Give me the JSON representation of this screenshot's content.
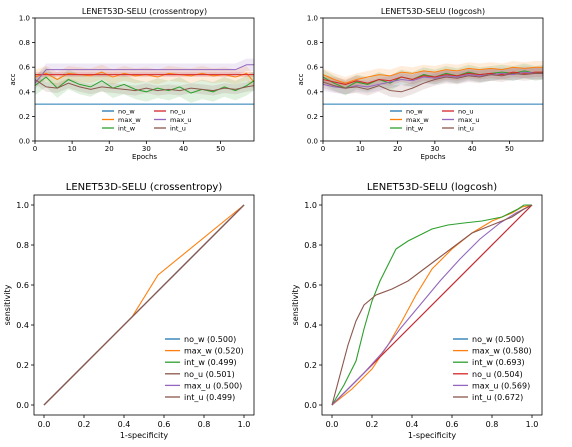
{
  "chart_data": [
    {
      "type": "line",
      "title": "LENET53D-SELU (crossentropy)",
      "xlabel": "Epochs",
      "ylabel": "acc",
      "xlim": [
        0,
        59
      ],
      "ylim": [
        0.0,
        1.0
      ],
      "xticks": [
        "0",
        "10",
        "20",
        "30",
        "40",
        "50"
      ],
      "yticks": [
        "0.0",
        "0.2",
        "0.4",
        "0.6",
        "0.8",
        "1.0"
      ],
      "grid": false,
      "legend": "bottom-center",
      "series": [
        {
          "name": "no_w",
          "color": "#1f77b4",
          "band": 0,
          "x": [
            0,
            59
          ],
          "y": [
            0.3,
            0.3
          ]
        },
        {
          "name": "max_w",
          "color": "#ff7f0e",
          "band": 0.06,
          "x": [
            0,
            3,
            6,
            9,
            12,
            15,
            18,
            21,
            24,
            27,
            30,
            33,
            36,
            39,
            42,
            45,
            48,
            51,
            54,
            57,
            59
          ],
          "y": [
            0.52,
            0.55,
            0.5,
            0.55,
            0.54,
            0.53,
            0.56,
            0.52,
            0.55,
            0.53,
            0.54,
            0.52,
            0.55,
            0.54,
            0.53,
            0.55,
            0.53,
            0.54,
            0.52,
            0.55,
            0.48
          ]
        },
        {
          "name": "int_w",
          "color": "#2ca02c",
          "band": 0.08,
          "x": [
            0,
            3,
            6,
            9,
            12,
            15,
            18,
            21,
            24,
            27,
            30,
            33,
            36,
            39,
            42,
            45,
            48,
            51,
            54,
            57,
            59
          ],
          "y": [
            0.45,
            0.52,
            0.43,
            0.5,
            0.46,
            0.44,
            0.49,
            0.43,
            0.46,
            0.42,
            0.4,
            0.43,
            0.41,
            0.44,
            0.39,
            0.42,
            0.4,
            0.44,
            0.41,
            0.45,
            0.49
          ]
        },
        {
          "name": "no_u",
          "color": "#d62728",
          "band": 0.02,
          "x": [
            0,
            59
          ],
          "y": [
            0.54,
            0.54
          ]
        },
        {
          "name": "max_u",
          "color": "#9467bd",
          "band": 0.05,
          "x": [
            0,
            3,
            6,
            9,
            12,
            15,
            18,
            21,
            24,
            27,
            30,
            33,
            36,
            39,
            42,
            45,
            48,
            51,
            54,
            57,
            59
          ],
          "y": [
            0.47,
            0.58,
            0.58,
            0.58,
            0.58,
            0.58,
            0.58,
            0.58,
            0.58,
            0.58,
            0.58,
            0.58,
            0.58,
            0.58,
            0.58,
            0.58,
            0.58,
            0.58,
            0.58,
            0.62,
            0.62
          ]
        },
        {
          "name": "int_u",
          "color": "#8c564b",
          "band": 0.04,
          "x": [
            0,
            3,
            6,
            9,
            12,
            15,
            18,
            21,
            24,
            27,
            30,
            33,
            36,
            39,
            42,
            45,
            48,
            51,
            54,
            57,
            59
          ],
          "y": [
            0.5,
            0.44,
            0.43,
            0.47,
            0.44,
            0.42,
            0.44,
            0.43,
            0.42,
            0.41,
            0.43,
            0.41,
            0.42,
            0.41,
            0.43,
            0.42,
            0.41,
            0.43,
            0.42,
            0.44,
            0.45
          ]
        }
      ]
    },
    {
      "type": "line",
      "title": "LENET53D-SELU (logcosh)",
      "xlabel": "Epochs",
      "ylabel": "acc",
      "xlim": [
        0,
        59
      ],
      "ylim": [
        0.0,
        1.0
      ],
      "xticks": [
        "0",
        "10",
        "20",
        "30",
        "40",
        "50"
      ],
      "yticks": [
        "0.0",
        "0.2",
        "0.4",
        "0.6",
        "0.8",
        "1.0"
      ],
      "grid": false,
      "legend": "bottom-center",
      "series": [
        {
          "name": "no_w",
          "color": "#1f77b4",
          "band": 0,
          "x": [
            0,
            59
          ],
          "y": [
            0.3,
            0.3
          ]
        },
        {
          "name": "max_w",
          "color": "#ff7f0e",
          "band": 0.05,
          "x": [
            0,
            3,
            6,
            9,
            12,
            15,
            18,
            21,
            24,
            27,
            30,
            33,
            36,
            39,
            42,
            45,
            48,
            51,
            54,
            57,
            59
          ],
          "y": [
            0.54,
            0.5,
            0.47,
            0.5,
            0.52,
            0.54,
            0.53,
            0.56,
            0.55,
            0.57,
            0.56,
            0.58,
            0.57,
            0.59,
            0.58,
            0.59,
            0.58,
            0.6,
            0.59,
            0.6,
            0.6
          ]
        },
        {
          "name": "int_w",
          "color": "#2ca02c",
          "band": 0.06,
          "x": [
            0,
            3,
            6,
            9,
            12,
            15,
            18,
            21,
            24,
            27,
            30,
            33,
            36,
            39,
            42,
            45,
            48,
            51,
            54,
            57,
            59
          ],
          "y": [
            0.52,
            0.47,
            0.43,
            0.48,
            0.46,
            0.5,
            0.47,
            0.52,
            0.5,
            0.54,
            0.52,
            0.55,
            0.53,
            0.56,
            0.54,
            0.55,
            0.56,
            0.55,
            0.57,
            0.55,
            0.56
          ]
        },
        {
          "name": "no_u",
          "color": "#d62728",
          "band": 0.04,
          "x": [
            0,
            3,
            6,
            9,
            12,
            15,
            18,
            21,
            24,
            27,
            30,
            33,
            36,
            39,
            42,
            45,
            48,
            51,
            54,
            57,
            59
          ],
          "y": [
            0.5,
            0.48,
            0.46,
            0.49,
            0.47,
            0.5,
            0.49,
            0.52,
            0.5,
            0.53,
            0.52,
            0.54,
            0.53,
            0.55,
            0.54,
            0.55,
            0.54,
            0.56,
            0.55,
            0.56,
            0.56
          ]
        },
        {
          "name": "max_u",
          "color": "#9467bd",
          "band": 0.05,
          "x": [
            0,
            3,
            6,
            9,
            12,
            15,
            18,
            21,
            24,
            27,
            30,
            33,
            36,
            39,
            42,
            45,
            48,
            51,
            54,
            57,
            59
          ],
          "y": [
            0.46,
            0.44,
            0.43,
            0.45,
            0.44,
            0.46,
            0.48,
            0.5,
            0.49,
            0.52,
            0.51,
            0.53,
            0.52,
            0.54,
            0.53,
            0.54,
            0.55,
            0.54,
            0.56,
            0.55,
            0.55
          ]
        },
        {
          "name": "int_u",
          "color": "#8c564b",
          "band": 0.05,
          "x": [
            0,
            3,
            6,
            9,
            12,
            15,
            18,
            21,
            24,
            27,
            30,
            33,
            36,
            39,
            42,
            45,
            48,
            51,
            54,
            57,
            59
          ],
          "y": [
            0.48,
            0.45,
            0.43,
            0.44,
            0.42,
            0.45,
            0.41,
            0.4,
            0.43,
            0.47,
            0.5,
            0.52,
            0.51,
            0.53,
            0.52,
            0.54,
            0.53,
            0.55,
            0.54,
            0.55,
            0.55
          ]
        }
      ]
    },
    {
      "type": "line",
      "title": "LENET53D-SELU (crossentropy)",
      "xlabel": "1-specificity",
      "ylabel": "sensitivity",
      "xlim": [
        -0.05,
        1.05
      ],
      "ylim": [
        -0.05,
        1.05
      ],
      "xticks": [
        "0.0",
        "0.2",
        "0.4",
        "0.6",
        "0.8",
        "1.0"
      ],
      "yticks": [
        "0.0",
        "0.2",
        "0.4",
        "0.6",
        "0.8",
        "1.0"
      ],
      "grid": false,
      "legend": "bottom-right",
      "series": [
        {
          "name": "no_w (0.500)",
          "color": "#1f77b4",
          "x": [
            0,
            1
          ],
          "y": [
            0,
            1
          ]
        },
        {
          "name": "max_w (0.520)",
          "color": "#ff7f0e",
          "x": [
            0,
            0.44,
            0.57,
            1.0
          ],
          "y": [
            0,
            0.44,
            0.65,
            1.0
          ]
        },
        {
          "name": "int_w (0.499)",
          "color": "#2ca02c",
          "x": [
            0,
            1
          ],
          "y": [
            0,
            1
          ]
        },
        {
          "name": "no_u (0.501)",
          "color": "#8c564b",
          "x": [
            0,
            1
          ],
          "y": [
            0,
            1
          ]
        },
        {
          "name": "max_u (0.500)",
          "color": "#9467bd",
          "x": [
            0,
            1
          ],
          "y": [
            0,
            1
          ]
        },
        {
          "name": "int_u (0.499)",
          "color": "#8c564b",
          "x": [
            0,
            1
          ],
          "y": [
            0,
            1
          ]
        }
      ]
    },
    {
      "type": "line",
      "title": "LENET53D-SELU (logcosh)",
      "xlabel": "1-specificity",
      "ylabel": "sensitivity",
      "xlim": [
        -0.05,
        1.05
      ],
      "ylim": [
        -0.05,
        1.05
      ],
      "xticks": [
        "0.0",
        "0.2",
        "0.4",
        "0.6",
        "0.8",
        "1.0"
      ],
      "yticks": [
        "0.0",
        "0.2",
        "0.4",
        "0.6",
        "0.8",
        "1.0"
      ],
      "grid": false,
      "legend": "bottom-right",
      "series": [
        {
          "name": "no_w (0.500)",
          "color": "#1f77b4",
          "x": [
            0,
            1
          ],
          "y": [
            0,
            1
          ]
        },
        {
          "name": "max_w (0.580)",
          "color": "#ff7f0e",
          "x": [
            0,
            0.1,
            0.2,
            0.28,
            0.35,
            0.42,
            0.5,
            0.6,
            0.7,
            0.8,
            0.9,
            0.95,
            1.0
          ],
          "y": [
            0,
            0.08,
            0.18,
            0.3,
            0.42,
            0.55,
            0.68,
            0.78,
            0.86,
            0.92,
            0.96,
            0.99,
            1.0
          ]
        },
        {
          "name": "int_w (0.693)",
          "color": "#2ca02c",
          "x": [
            0,
            0.06,
            0.12,
            0.16,
            0.2,
            0.24,
            0.28,
            0.32,
            0.38,
            0.44,
            0.5,
            0.58,
            0.66,
            0.75,
            0.85,
            0.93,
            0.96,
            1.0
          ],
          "y": [
            0,
            0.1,
            0.22,
            0.38,
            0.52,
            0.62,
            0.7,
            0.78,
            0.82,
            0.85,
            0.88,
            0.9,
            0.91,
            0.92,
            0.94,
            0.98,
            1.0,
            1.0
          ]
        },
        {
          "name": "no_u (0.504)",
          "color": "#d62728",
          "x": [
            0,
            1
          ],
          "y": [
            0,
            1
          ]
        },
        {
          "name": "max_u (0.569)",
          "color": "#9467bd",
          "x": [
            0,
            0.08,
            0.16,
            0.25,
            0.34,
            0.44,
            0.54,
            0.64,
            0.74,
            0.84,
            0.92,
            1.0
          ],
          "y": [
            0,
            0.08,
            0.16,
            0.26,
            0.38,
            0.5,
            0.62,
            0.73,
            0.83,
            0.91,
            0.96,
            1.0
          ]
        },
        {
          "name": "int_u (0.672)",
          "color": "#8c564b",
          "x": [
            0,
            0.04,
            0.08,
            0.12,
            0.16,
            0.22,
            0.3,
            0.38,
            0.46,
            0.54,
            0.62,
            0.7,
            0.8,
            0.9,
            0.96,
            1.0
          ],
          "y": [
            0,
            0.15,
            0.3,
            0.42,
            0.5,
            0.55,
            0.58,
            0.62,
            0.68,
            0.74,
            0.8,
            0.86,
            0.9,
            0.94,
            0.98,
            1.0
          ]
        }
      ]
    }
  ]
}
